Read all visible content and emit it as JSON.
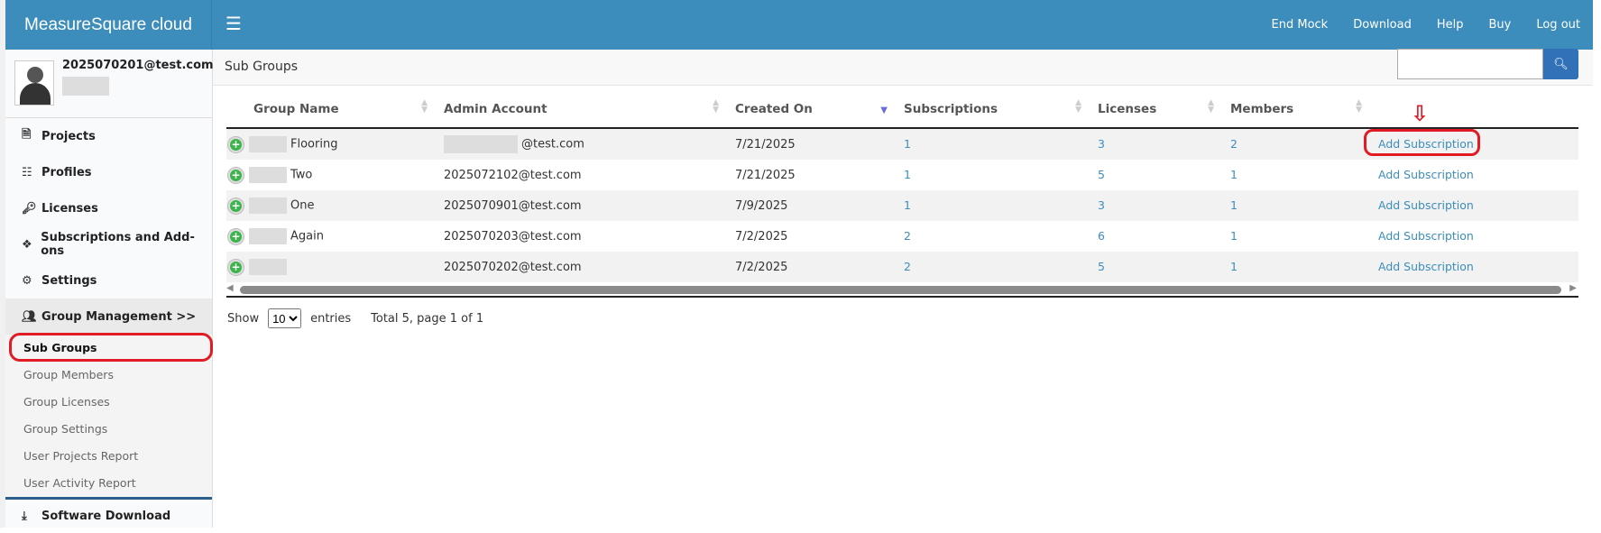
{
  "header": {
    "brand": "MeasureSquare cloud",
    "menu_icon": "hamburger-icon",
    "nav": [
      "End Mock",
      "Download",
      "Help",
      "Buy",
      "Log out"
    ]
  },
  "user": {
    "email": "2025070201@test.com"
  },
  "sidebar": {
    "items": [
      {
        "label": "Projects",
        "icon": "file-icon"
      },
      {
        "label": "Profiles",
        "icon": "database-icon"
      },
      {
        "label": "Licenses",
        "icon": "key-icon"
      },
      {
        "label": "Subscriptions and Add-ons",
        "icon": "tags-icon"
      },
      {
        "label": "Settings",
        "icon": "gear-icon"
      }
    ],
    "group": {
      "label": "Group Management >>",
      "icon": "users-icon"
    },
    "subitems": [
      "Sub Groups",
      "Group Members",
      "Group Licenses",
      "Group Settings",
      "User Projects Report",
      "User Activity Report"
    ],
    "active": "Sub Groups",
    "download": {
      "label": "Software Download",
      "icon": "download-icon"
    }
  },
  "page": {
    "title": "Sub Groups",
    "search_placeholder": ""
  },
  "table": {
    "columns": [
      "Group Name",
      "Admin Account",
      "Created On",
      "Subscriptions",
      "Licenses",
      "Members",
      ""
    ],
    "sorted_column": "Created On",
    "sort_direction": "descending",
    "rows": [
      {
        "name": "Flooring",
        "admin": "@test.com",
        "created": "7/21/2025",
        "subs": "1",
        "licenses": "3",
        "members": "2",
        "action": "Add Subscription"
      },
      {
        "name": "Two",
        "admin": "2025072102@test.com",
        "created": "7/21/2025",
        "subs": "1",
        "licenses": "5",
        "members": "1",
        "action": "Add Subscription"
      },
      {
        "name": "One",
        "admin": "2025070901@test.com",
        "created": "7/9/2025",
        "subs": "1",
        "licenses": "3",
        "members": "1",
        "action": "Add Subscription"
      },
      {
        "name": "Again",
        "admin": "2025070203@test.com",
        "created": "7/2/2025",
        "subs": "2",
        "licenses": "6",
        "members": "1",
        "action": "Add Subscription"
      },
      {
        "name": "",
        "admin": "2025070202@test.com",
        "created": "7/2/2025",
        "subs": "2",
        "licenses": "5",
        "members": "1",
        "action": "Add Subscription"
      }
    ]
  },
  "footer": {
    "show": "Show",
    "page_size": "10",
    "entries": "entries",
    "total": "Total 5, page 1 of 1"
  },
  "colors": {
    "header": "#3c8dbc",
    "link": "#3c8dbc",
    "highlight": "#e01b24",
    "add_icon": "#3ab54a"
  }
}
